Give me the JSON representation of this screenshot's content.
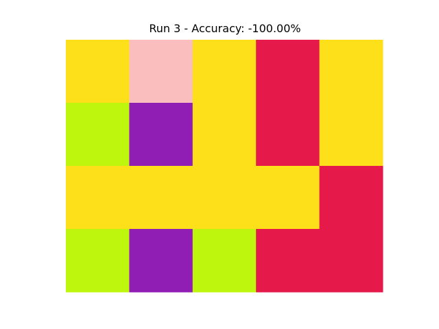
{
  "chart_data": {
    "type": "heatmap",
    "title": "Run 3 - Accuracy: -100.00%",
    "rows": 4,
    "cols": 5,
    "grid": false,
    "axes_visible": false,
    "palette": {
      "yellow": "#fde01a",
      "pink": "#fabebe",
      "red": "#e6194b",
      "lime": "#bef60e",
      "purple": "#911eb4"
    },
    "cells": [
      [
        "yellow",
        "pink",
        "yellow",
        "red",
        "yellow"
      ],
      [
        "lime",
        "purple",
        "yellow",
        "red",
        "yellow"
      ],
      [
        "yellow",
        "yellow",
        "yellow",
        "yellow",
        "red"
      ],
      [
        "lime",
        "purple",
        "lime",
        "red",
        "red"
      ]
    ]
  }
}
